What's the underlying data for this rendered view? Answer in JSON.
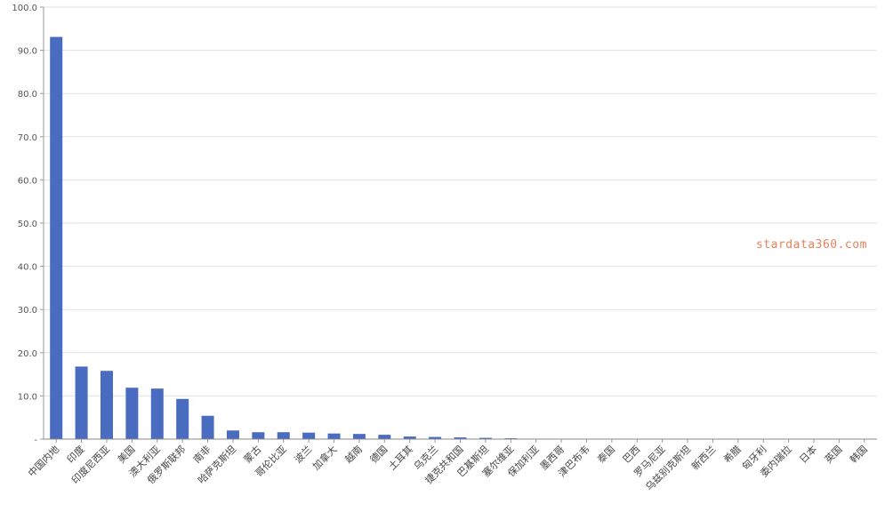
{
  "chart_data": {
    "type": "bar",
    "title": "",
    "xlabel": "",
    "ylabel": "",
    "ylim": [
      0,
      100
    ],
    "yticks": [
      "-",
      "10.0",
      "20.0",
      "30.0",
      "40.0",
      "50.0",
      "60.0",
      "70.0",
      "80.0",
      "90.0",
      "100.0"
    ],
    "grid": true,
    "bar_color": "#4a6cc0",
    "categories": [
      "中国内地",
      "印度",
      "印度尼西亚",
      "美国",
      "澳大利亚",
      "俄罗斯联邦",
      "南非",
      "哈萨克斯坦",
      "蒙古",
      "哥伦比亚",
      "波兰",
      "加拿大",
      "越南",
      "德国",
      "土耳其",
      "乌克兰",
      "捷克共和国",
      "巴基斯坦",
      "塞尔维亚",
      "保加利亚",
      "墨西哥",
      "津巴布韦",
      "泰国",
      "巴西",
      "罗马尼亚",
      "乌兹别克斯坦",
      "新西兰",
      "希腊",
      "匈牙利",
      "委内瑞拉",
      "日本",
      "英国",
      "韩国"
    ],
    "values": [
      93.1,
      16.8,
      15.8,
      11.9,
      11.7,
      9.3,
      5.4,
      2.0,
      1.6,
      1.6,
      1.5,
      1.3,
      1.2,
      1.0,
      0.6,
      0.5,
      0.4,
      0.3,
      0.2,
      0.1,
      0.1,
      0.05,
      0.05,
      0.05,
      0.05,
      0.05,
      0.05,
      0.05,
      0.05,
      0.05,
      0.05,
      0.05,
      0.05
    ]
  },
  "watermark": {
    "text": "stardata360.com",
    "color": "#e8825a"
  }
}
